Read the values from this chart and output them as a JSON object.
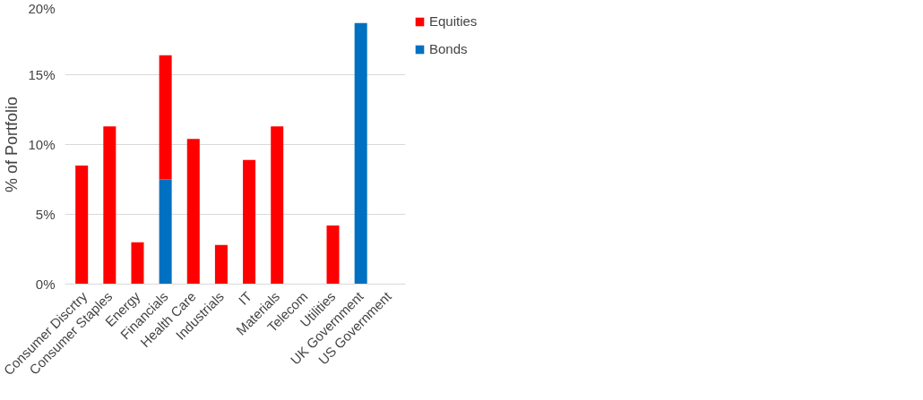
{
  "chart_data": {
    "type": "bar",
    "stacked": true,
    "ylabel": "% of Portfolio",
    "categories": [
      "Consumer Discrtry",
      "Consumer Staples",
      "Energy",
      "Financials",
      "Health Care",
      "Industrials",
      "IT",
      "Materials",
      "Telecom",
      "Utilities",
      "UK Government",
      "US Government"
    ],
    "series": [
      {
        "name": "Bonds",
        "color": "#0070c0",
        "values": [
          0,
          0,
          0,
          7.5,
          0,
          0,
          0,
          0,
          0,
          0,
          18.7,
          0
        ]
      },
      {
        "name": "Equities",
        "color": "#ff0000",
        "values": [
          8.5,
          11.3,
          3.0,
          8.9,
          10.4,
          2.8,
          8.9,
          11.3,
          0,
          4.2,
          0,
          0
        ]
      }
    ],
    "ylim": [
      0,
      20
    ],
    "yticks": [
      {
        "value": 0,
        "label": "0%"
      },
      {
        "value": 5,
        "label": "5%"
      },
      {
        "value": 10,
        "label": "10%"
      },
      {
        "value": 15,
        "label": "15%"
      },
      {
        "value": 20,
        "label": "20%"
      }
    ],
    "grid": "y",
    "legend": "right"
  }
}
